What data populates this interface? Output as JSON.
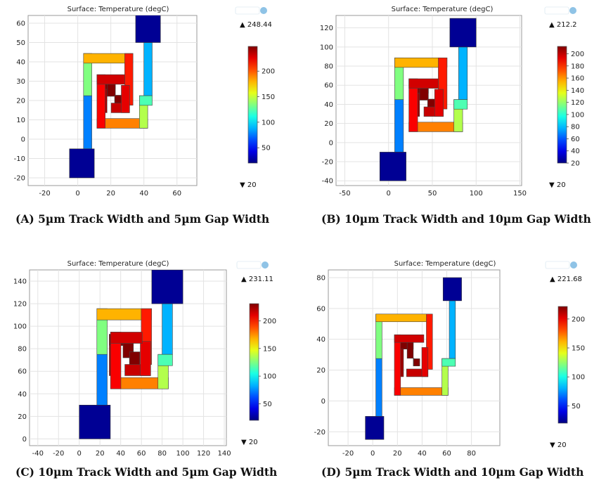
{
  "chart_data": [
    {
      "type": "heatmap",
      "id": "A",
      "title": "Surface: Temperature (degC)",
      "caption": "(A) 5µm Track Width and 5µm Gap Width",
      "xlim": [
        -30,
        72
      ],
      "ylim": [
        -24,
        64
      ],
      "x_ticks": [
        -20,
        0,
        20,
        40,
        60
      ],
      "y_ticks": [
        -20,
        -10,
        0,
        10,
        20,
        30,
        40,
        50,
        60
      ],
      "max_label": "▲ 248.44",
      "min_label": "▼ 20",
      "colorbar_range": [
        20,
        248.44
      ],
      "colorbar_ticks": [
        50,
        100,
        150,
        200
      ],
      "device": {
        "pad1": [
          -5,
          10,
          -20,
          -5
        ],
        "pad2": [
          35,
          50,
          50,
          65
        ],
        "track_width": 5,
        "gap_width": 5
      }
    },
    {
      "type": "heatmap",
      "id": "B",
      "title": "Surface: Temperature (degC)",
      "caption": "(B) 10µm Track Width and 10µm Gap Width",
      "xlim": [
        -60,
        152
      ],
      "ylim": [
        -45,
        133
      ],
      "x_ticks": [
        -50,
        0,
        50,
        100,
        150
      ],
      "y_ticks": [
        -40,
        -20,
        0,
        20,
        40,
        60,
        80,
        100,
        120
      ],
      "max_label": "▲ 212.2",
      "min_label": "▼ 20",
      "colorbar_range": [
        20,
        212.2
      ],
      "colorbar_ticks": [
        20,
        40,
        60,
        80,
        100,
        120,
        140,
        160,
        180,
        200
      ],
      "device": {
        "pad1": [
          -10,
          20,
          -40,
          -10
        ],
        "pad2": [
          70,
          100,
          100,
          130
        ],
        "track_width": 10,
        "gap_width": 10
      }
    },
    {
      "type": "heatmap",
      "id": "C",
      "title": "Surface: Temperature (degC)",
      "caption": "(C) 10µm Track Width and 5µm Gap Width",
      "xlim": [
        -48,
        142
      ],
      "ylim": [
        -6,
        150
      ],
      "x_ticks": [
        -40,
        -20,
        0,
        20,
        40,
        60,
        80,
        100,
        120,
        140
      ],
      "y_ticks": [
        0,
        20,
        40,
        60,
        80,
        100,
        120,
        140
      ],
      "max_label": "▲ 231.11",
      "min_label": "▼ 20",
      "colorbar_range": [
        20,
        231.11
      ],
      "colorbar_ticks": [
        50,
        100,
        150,
        200
      ],
      "device": {
        "pad1": [
          0,
          30,
          0,
          30
        ],
        "pad2": [
          70,
          100,
          120,
          150
        ],
        "track_width": 10,
        "gap_width": 5
      }
    },
    {
      "type": "heatmap",
      "id": "D",
      "title": "Surface: Temperature (degC)",
      "caption": "(D) 5µm Track Width and 10µm Gap Width",
      "xlim": [
        -36,
        103
      ],
      "ylim": [
        -29,
        85
      ],
      "x_ticks": [
        -20,
        0,
        20,
        40,
        60,
        80
      ],
      "y_ticks": [
        -20,
        0,
        20,
        40,
        60,
        80
      ],
      "max_label": "▲ 221.68",
      "min_label": "▼ 20",
      "colorbar_range": [
        20,
        221.68
      ],
      "colorbar_ticks": [
        50,
        100,
        150,
        200
      ],
      "device": {
        "pad1": [
          -6,
          9,
          -25,
          -10
        ],
        "pad2": [
          57,
          72,
          65,
          80
        ],
        "track_width": 5,
        "gap_width": 10
      }
    }
  ]
}
